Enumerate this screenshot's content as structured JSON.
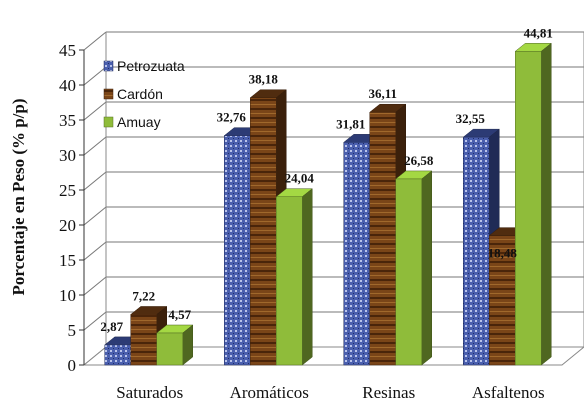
{
  "chart_data": {
    "type": "bar",
    "title": "",
    "xlabel": "",
    "ylabel": "Porcentaje en Peso (% p/p)",
    "ylim": [
      0,
      45
    ],
    "yticks": [
      0,
      5,
      10,
      15,
      20,
      25,
      30,
      35,
      40,
      45
    ],
    "grid": true,
    "legend_position": "top-left",
    "categories": [
      "Saturados",
      "Aromáticos",
      "Resinas",
      "Asfaltenos"
    ],
    "series": [
      {
        "name": "Petrozuata",
        "values": [
          2.87,
          32.76,
          31.81,
          32.55
        ],
        "labels": [
          "2,87",
          "32,76",
          "31,81",
          "32,55"
        ],
        "color": "#3b4f9c"
      },
      {
        "name": "Cardón",
        "values": [
          7.22,
          38.18,
          36.11,
          18.48
        ],
        "labels": [
          "7,22",
          "38,18",
          "36,11",
          "18,48"
        ],
        "color": "#6b3a14"
      },
      {
        "name": "Amuay",
        "values": [
          4.57,
          24.04,
          26.58,
          44.81
        ],
        "labels": [
          "4,57",
          "24,04",
          "26,58",
          "44,81"
        ],
        "color": "#8fbc3a"
      }
    ]
  }
}
